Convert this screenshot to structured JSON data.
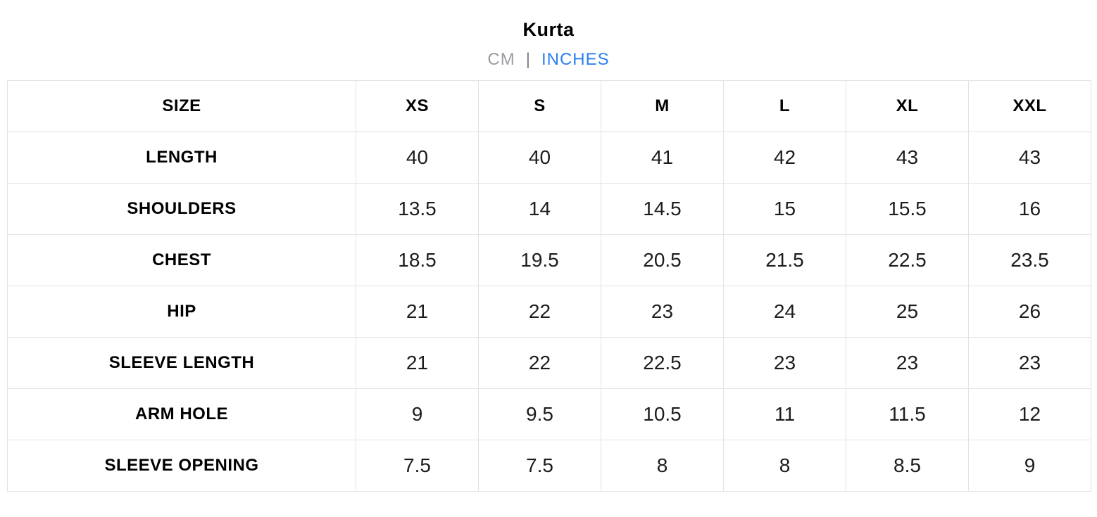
{
  "title": "Kurta",
  "unit_toggle": {
    "cm_label": "CM",
    "separator": "|",
    "inches_label": "INCHES",
    "active_unit": "INCHES"
  },
  "colors": {
    "accent_blue": "#2e7ff2",
    "inactive_gray": "#9a9c9f",
    "table_border": "#e3e3e3"
  },
  "size_chart": {
    "header": [
      "SIZE",
      "XS",
      "S",
      "M",
      "L",
      "XL",
      "XXL"
    ],
    "rows": [
      {
        "label": "LENGTH",
        "values": [
          "40",
          "40",
          "41",
          "42",
          "43",
          "43"
        ]
      },
      {
        "label": "SHOULDERS",
        "values": [
          "13.5",
          "14",
          "14.5",
          "15",
          "15.5",
          "16"
        ]
      },
      {
        "label": "CHEST",
        "values": [
          "18.5",
          "19.5",
          "20.5",
          "21.5",
          "22.5",
          "23.5"
        ]
      },
      {
        "label": "HIP",
        "values": [
          "21",
          "22",
          "23",
          "24",
          "25",
          "26"
        ]
      },
      {
        "label": "SLEEVE LENGTH",
        "values": [
          "21",
          "22",
          "22.5",
          "23",
          "23",
          "23"
        ]
      },
      {
        "label": "ARM HOLE",
        "values": [
          "9",
          "9.5",
          "10.5",
          "11",
          "11.5",
          "12"
        ]
      },
      {
        "label": "SLEEVE OPENING",
        "values": [
          "7.5",
          "7.5",
          "8",
          "8",
          "8.5",
          "9"
        ]
      }
    ]
  },
  "chart_data": {
    "type": "table",
    "title": "Kurta",
    "unit": "INCHES",
    "columns": [
      "SIZE",
      "XS",
      "S",
      "M",
      "L",
      "XL",
      "XXL"
    ],
    "rows": [
      [
        "LENGTH",
        40,
        40,
        41,
        42,
        43,
        43
      ],
      [
        "SHOULDERS",
        13.5,
        14,
        14.5,
        15,
        15.5,
        16
      ],
      [
        "CHEST",
        18.5,
        19.5,
        20.5,
        21.5,
        22.5,
        23.5
      ],
      [
        "HIP",
        21,
        22,
        23,
        24,
        25,
        26
      ],
      [
        "SLEEVE LENGTH",
        21,
        22,
        22.5,
        23,
        23,
        23
      ],
      [
        "ARM HOLE",
        9,
        9.5,
        10.5,
        11,
        11.5,
        12
      ],
      [
        "SLEEVE OPENING",
        7.5,
        7.5,
        8,
        8,
        8.5,
        9
      ]
    ]
  }
}
